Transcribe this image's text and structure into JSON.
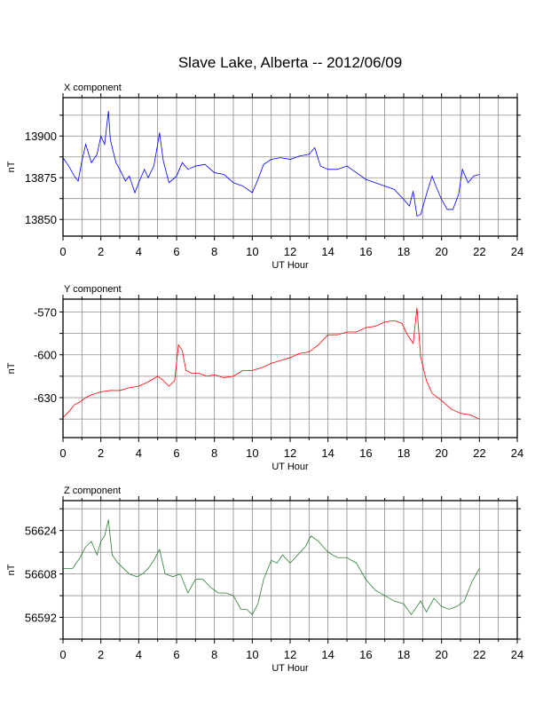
{
  "title": "Slave Lake, Alberta -- 2012/06/09",
  "chart_data": [
    {
      "type": "line",
      "label": "X component",
      "xlabel": "UT Hour",
      "ylabel": "nT",
      "xlim": [
        0,
        24
      ],
      "ylim": [
        13840,
        13923
      ],
      "xticks": [
        0,
        2,
        4,
        6,
        8,
        10,
        12,
        14,
        16,
        18,
        20,
        22,
        24
      ],
      "yticks": [
        13850,
        13875,
        13900
      ],
      "color": "#0000ff",
      "x": [
        0,
        0.3,
        0.6,
        0.8,
        1.0,
        1.2,
        1.5,
        1.8,
        2.0,
        2.2,
        2.4,
        2.5,
        2.6,
        2.8,
        3.0,
        3.3,
        3.5,
        3.8,
        4.0,
        4.3,
        4.5,
        4.8,
        5.0,
        5.1,
        5.3,
        5.6,
        6.0,
        6.3,
        6.6,
        7.0,
        7.5,
        8.0,
        8.5,
        9.0,
        9.5,
        10.0,
        10.3,
        10.6,
        11.0,
        11.5,
        12.0,
        12.5,
        13.0,
        13.3,
        13.6,
        14.0,
        14.5,
        15.0,
        15.5,
        16.0,
        16.5,
        17.0,
        17.5,
        18.0,
        18.3,
        18.5,
        18.7,
        18.9,
        19.2,
        19.5,
        19.7,
        20.0,
        20.3,
        20.6,
        20.9,
        21.1,
        21.4,
        21.7,
        22.0
      ],
      "y": [
        13887,
        13882,
        13876,
        13873,
        13885,
        13895,
        13884,
        13889,
        13900,
        13895,
        13915,
        13898,
        13893,
        13884,
        13880,
        13873,
        13876,
        13866,
        13872,
        13880,
        13875,
        13882,
        13895,
        13902,
        13885,
        13872,
        13876,
        13884,
        13880,
        13882,
        13883,
        13878,
        13877,
        13872,
        13870,
        13866,
        13874,
        13883,
        13886,
        13887,
        13886,
        13888,
        13889,
        13893,
        13882,
        13880,
        13880,
        13882,
        13878,
        13874,
        13872,
        13870,
        13868,
        13862,
        13858,
        13867,
        13852,
        13853,
        13865,
        13876,
        13870,
        13862,
        13856,
        13856,
        13865,
        13880,
        13872,
        13876,
        13877
      ]
    },
    {
      "type": "line",
      "label": "Y component",
      "xlabel": "UT Hour",
      "ylabel": "nT",
      "xlim": [
        0,
        24
      ],
      "ylim": [
        -658,
        -561
      ],
      "xticks": [
        0,
        2,
        4,
        6,
        8,
        10,
        12,
        14,
        16,
        18,
        20,
        22,
        24
      ],
      "yticks": [
        -570,
        -600,
        -630
      ],
      "color": "#ff0000",
      "x": [
        0,
        0.3,
        0.6,
        0.9,
        1.2,
        1.5,
        2.0,
        2.5,
        3.0,
        3.5,
        4.0,
        4.5,
        5.0,
        5.3,
        5.6,
        5.9,
        6.1,
        6.3,
        6.5,
        6.8,
        7.2,
        7.6,
        8.0,
        8.5,
        9.0,
        9.5,
        10.0,
        10.5,
        11.0,
        11.5,
        12.0,
        12.5,
        13.0,
        13.5,
        14.0,
        14.5,
        15.0,
        15.5,
        16.0,
        16.5,
        17.0,
        17.5,
        17.9,
        18.2,
        18.5,
        18.7,
        18.9,
        19.2,
        19.5,
        20.0,
        20.5,
        21.0,
        21.5,
        22.0
      ],
      "y": [
        -644,
        -640,
        -635,
        -633,
        -630,
        -628,
        -626,
        -625,
        -625,
        -623,
        -622,
        -619,
        -615,
        -618,
        -622,
        -618,
        -593,
        -597,
        -611,
        -613,
        -613,
        -615,
        -614,
        -616,
        -615,
        -611,
        -611,
        -609,
        -606,
        -604,
        -602,
        -599,
        -598,
        -593,
        -586,
        -586,
        -584,
        -584,
        -581,
        -580,
        -577,
        -576,
        -578,
        -586,
        -592,
        -567,
        -602,
        -618,
        -627,
        -632,
        -638,
        -641,
        -642,
        -645
      ]
    },
    {
      "type": "line",
      "label": "Z component",
      "xlabel": "UT Hour",
      "ylabel": "nT",
      "xlim": [
        0,
        24
      ],
      "ylim": [
        56584,
        56635
      ],
      "xticks": [
        0,
        2,
        4,
        6,
        8,
        10,
        12,
        14,
        16,
        18,
        20,
        22,
        24
      ],
      "yticks": [
        56592,
        56608,
        56624
      ],
      "color": "#2e7d32",
      "x": [
        0,
        0.5,
        0.9,
        1.2,
        1.5,
        1.8,
        2.0,
        2.2,
        2.4,
        2.6,
        2.9,
        3.2,
        3.5,
        3.9,
        4.2,
        4.5,
        4.8,
        5.1,
        5.4,
        5.8,
        6.2,
        6.6,
        7.0,
        7.4,
        7.8,
        8.2,
        8.6,
        9.0,
        9.4,
        9.7,
        10.0,
        10.3,
        10.6,
        11.0,
        11.3,
        11.6,
        12.0,
        12.4,
        12.8,
        13.1,
        13.5,
        14.0,
        14.5,
        15.0,
        15.5,
        16.0,
        16.5,
        17.0,
        17.5,
        18.0,
        18.4,
        18.7,
        18.9,
        19.2,
        19.6,
        20.0,
        20.4,
        20.8,
        21.2,
        21.6,
        22.0
      ],
      "y": [
        56610,
        56610,
        56614,
        56618,
        56620,
        56615,
        56620,
        56622,
        56628,
        56615,
        56612,
        56610,
        56608,
        56607,
        56608,
        56610,
        56613,
        56617,
        56608,
        56607,
        56608,
        56601,
        56606,
        56606,
        56603,
        56601,
        56601,
        56600,
        56595,
        56595,
        56593,
        56597,
        56606,
        56613,
        56612,
        56615,
        56612,
        56615,
        56618,
        56622,
        56620,
        56616,
        56614,
        56614,
        56612,
        56606,
        56602,
        56600,
        56598,
        56597,
        56593,
        56596,
        56598,
        56594,
        56599,
        56596,
        56595,
        56596,
        56598,
        56605,
        56610
      ]
    }
  ]
}
